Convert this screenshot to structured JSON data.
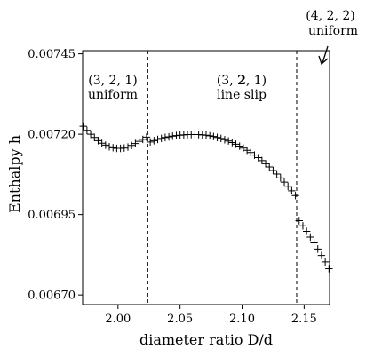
{
  "chart_data": {
    "type": "scatter",
    "xlabel": "diameter ratio D/d",
    "ylabel": "Enthalpy h",
    "xlim": [
      1.9715,
      2.1705
    ],
    "ylim": [
      0.00667,
      0.00746
    ],
    "xticks": [
      2.0,
      2.05,
      2.1,
      2.15
    ],
    "xtick_labels": [
      "2.00",
      "2.05",
      "2.10",
      "2.15"
    ],
    "yticks": [
      0.0067,
      0.00695,
      0.0072,
      0.00745
    ],
    "ytick_labels": [
      "0.00670",
      "0.00695",
      "0.00720",
      "0.00745"
    ],
    "marker": "plus",
    "vlines": [
      2.024,
      2.144
    ],
    "regions": [
      {
        "line1": "(3, 2, 1)",
        "line2": "uniform"
      },
      {
        "line1_a": "(3, ",
        "line1_bold": "2",
        "line1_b": ", 1)",
        "line2": "line slip"
      },
      {
        "line1": "(4, 2, 2)",
        "line2": "uniform"
      }
    ],
    "series": [
      {
        "x": [
          1.972,
          1.975,
          1.978,
          1.981,
          1.984,
          1.987,
          1.99,
          1.993,
          1.996,
          1.999,
          2.002,
          2.005,
          2.008,
          2.011,
          2.014,
          2.017,
          2.02,
          2.023,
          2.026,
          2.029,
          2.032,
          2.035,
          2.038,
          2.041,
          2.044,
          2.047,
          2.05,
          2.053,
          2.056,
          2.059,
          2.062,
          2.065,
          2.068,
          2.071,
          2.074,
          2.077,
          2.08,
          2.083,
          2.086,
          2.089,
          2.092,
          2.095,
          2.098,
          2.101,
          2.104,
          2.107,
          2.11,
          2.113,
          2.116,
          2.119,
          2.122,
          2.125,
          2.128,
          2.131,
          2.134,
          2.137,
          2.14,
          2.143,
          2.146,
          2.149,
          2.152,
          2.155,
          2.158,
          2.161,
          2.164,
          2.167,
          2.17
        ],
        "y": [
          0.007225,
          0.007212,
          0.0072,
          0.00719,
          0.00718,
          0.007172,
          0.007166,
          0.007161,
          0.007158,
          0.007156,
          0.007156,
          0.007157,
          0.00716,
          0.007165,
          0.007171,
          0.007178,
          0.007184,
          0.007191,
          0.007176,
          0.00718,
          0.007184,
          0.007187,
          0.00719,
          0.007192,
          0.007194,
          0.007196,
          0.007197,
          0.007198,
          0.007199,
          0.007199,
          0.007199,
          0.007199,
          0.007198,
          0.007197,
          0.007195,
          0.007193,
          0.00719,
          0.007187,
          0.007183,
          0.007179,
          0.007174,
          0.007169,
          0.007163,
          0.007157,
          0.00715,
          0.007143,
          0.007135,
          0.007127,
          0.007118,
          0.007108,
          0.007098,
          0.007087,
          0.007076,
          0.007064,
          0.007051,
          0.007038,
          0.007024,
          0.007009,
          0.006931,
          0.006915,
          0.006898,
          0.00688,
          0.006862,
          0.006843,
          0.006823,
          0.006803,
          0.006782
        ]
      }
    ]
  }
}
